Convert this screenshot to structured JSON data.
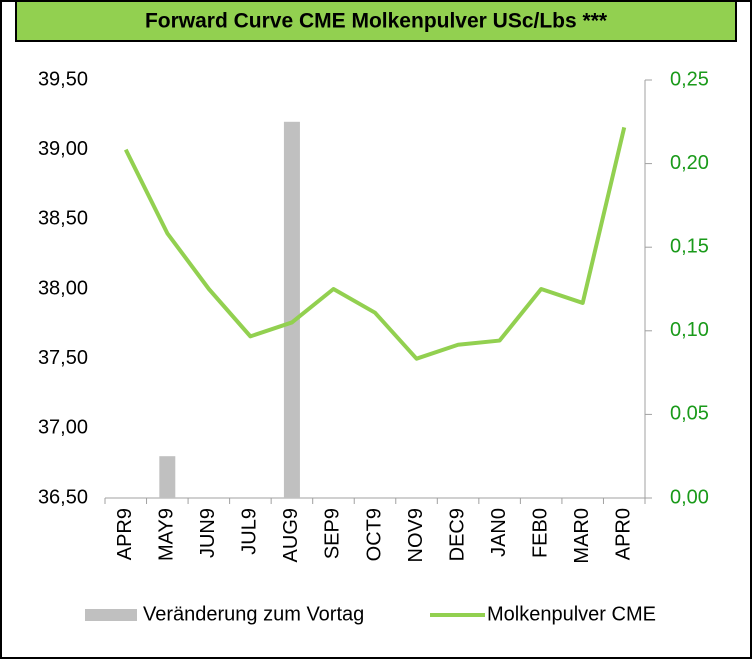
{
  "chart_data": {
    "type": "bar-line",
    "title": "Forward Curve CME Molkenpulver USc/Lbs ***",
    "categories": [
      "APR9",
      "MAY9",
      "JUN9",
      "JUL9",
      "AUG9",
      "SEP9",
      "OCT9",
      "NOV9",
      "DEC9",
      "JAN0",
      "FEB0",
      "MAR0",
      "APR0"
    ],
    "series": [
      {
        "name": "Veränderung zum Vortag",
        "type": "bar",
        "axis": "y2",
        "color": "#c0c0c0",
        "values": [
          0,
          0.025,
          0,
          0,
          0.225,
          0,
          0,
          0,
          0,
          0,
          0,
          0,
          0
        ]
      },
      {
        "name": "Molkenpulver CME",
        "type": "line",
        "color": "#92d050",
        "values": [
          39.0,
          38.4,
          38.0,
          37.66,
          37.76,
          38.0,
          37.83,
          37.5,
          37.6,
          37.63,
          38.0,
          37.9,
          39.16
        ]
      }
    ],
    "ylim": [
      36.5,
      39.5
    ],
    "yticks": [
      {
        "value": 36.5,
        "label": "36,50"
      },
      {
        "value": 37.0,
        "label": "37,00"
      },
      {
        "value": 37.5,
        "label": "37,50"
      },
      {
        "value": 38.0,
        "label": "38,00"
      },
      {
        "value": 38.5,
        "label": "38,50"
      },
      {
        "value": 39.0,
        "label": "39,00"
      },
      {
        "value": 39.5,
        "label": "39,50"
      }
    ],
    "y2lim": [
      0,
      0.25
    ],
    "y2ticks": [
      {
        "value": 0,
        "label": "0,00"
      },
      {
        "value": 0.05,
        "label": "0,05"
      },
      {
        "value": 0.1,
        "label": "0,10"
      },
      {
        "value": 0.15,
        "label": "0,15"
      },
      {
        "value": 0.2,
        "label": "0,20"
      },
      {
        "value": 0.25,
        "label": "0,25"
      }
    ],
    "y2_color": "#1a9a1a",
    "title_color": "#92d050"
  }
}
